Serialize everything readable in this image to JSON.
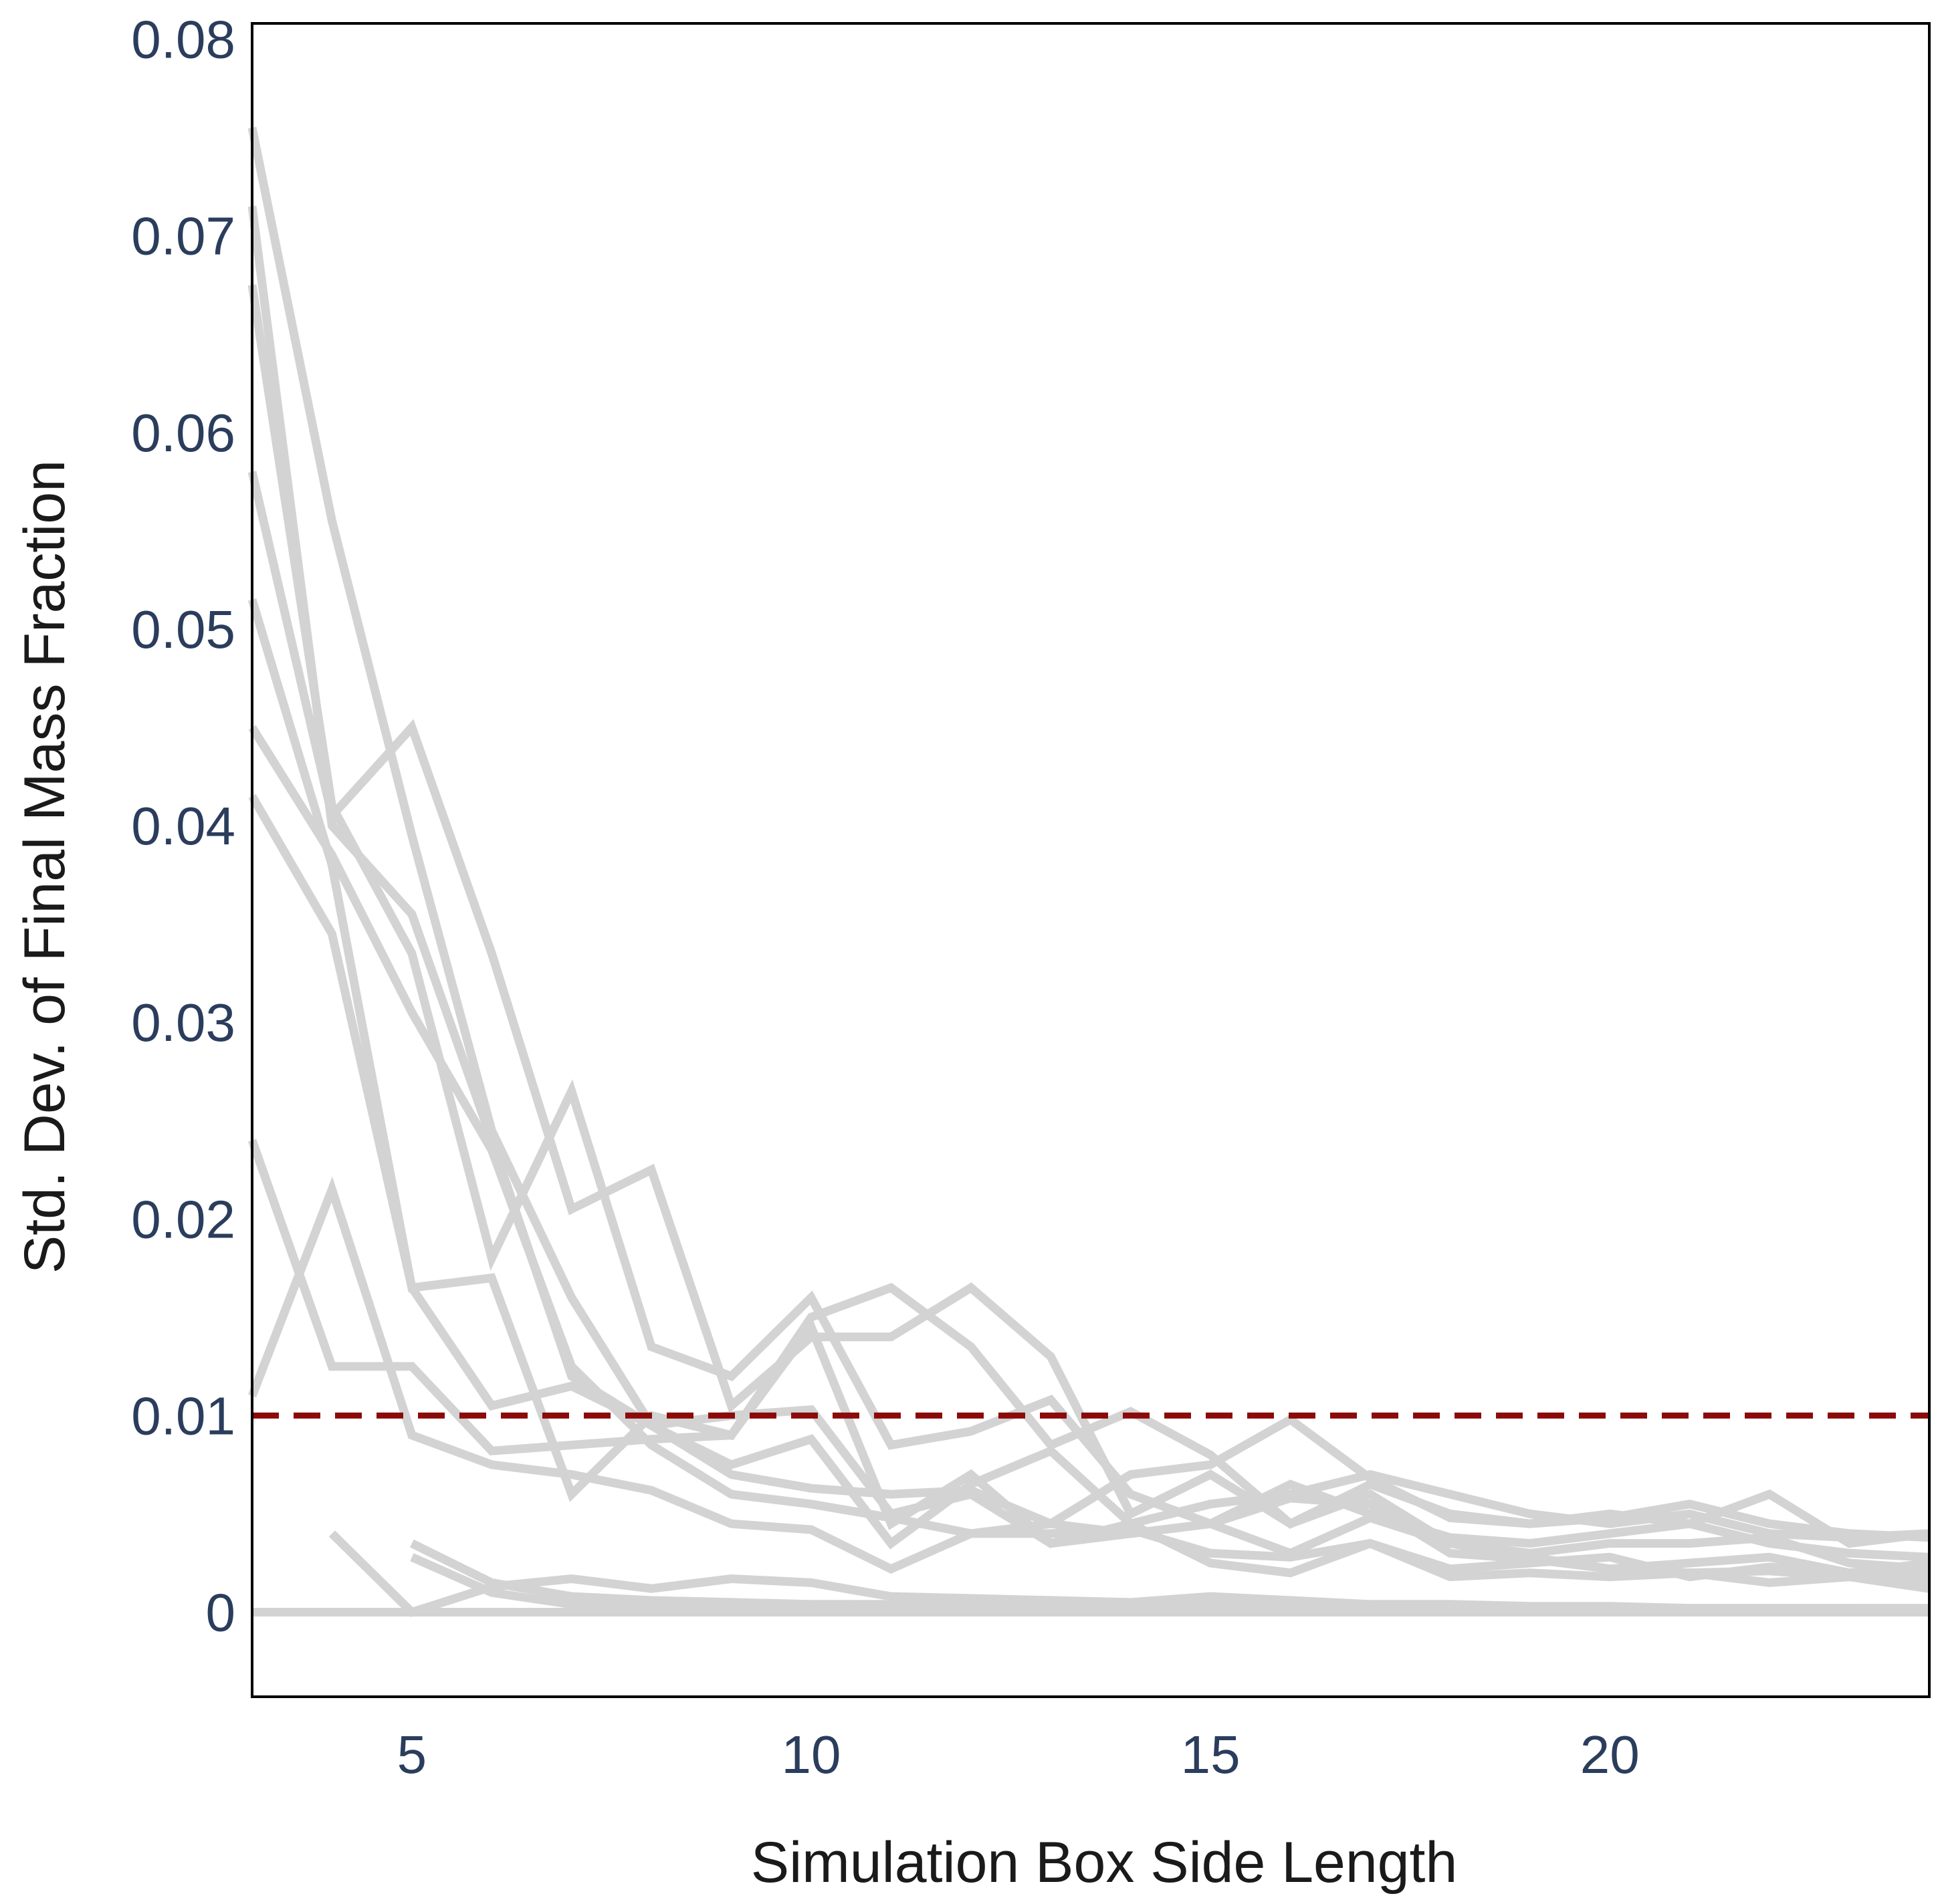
{
  "chart_data": {
    "type": "line",
    "title": "",
    "xlabel": "Simulation Box Side Length",
    "ylabel": "Std. Dev. of Final Mass Fraction",
    "xlim": [
      3,
      24
    ],
    "ylim": [
      -0.0043,
      0.0808
    ],
    "x_ticks": [
      5,
      10,
      15,
      20
    ],
    "x_tick_labels": [
      "5",
      "10",
      "15",
      "20"
    ],
    "y_ticks": [
      0,
      0.01,
      0.02,
      0.03,
      0.04,
      0.05,
      0.06,
      0.07,
      0.08
    ],
    "y_tick_labels": [
      "0",
      "0.01",
      "0.02",
      "0.03",
      "0.04",
      "0.05",
      "0.06",
      "0.07",
      "0.08"
    ],
    "grid": false,
    "legend": "none",
    "reference_line": {
      "y": 0.01,
      "style": "dashed",
      "color": "#8b0a0a"
    },
    "series_color": "#d3d3d3",
    "tick_color": "#2b3d5c",
    "series": [
      {
        "x": [
          3,
          4,
          5,
          6,
          7,
          8,
          9,
          10,
          11,
          12,
          13,
          14,
          15,
          16,
          17,
          18,
          19,
          20,
          21,
          22,
          23,
          24
        ],
        "y": [
          0.0755,
          0.0555,
          0.0395,
          0.0245,
          0.016,
          0.0095,
          0.007,
          0.0063,
          0.006,
          0.0062,
          0.0045,
          0.004,
          0.0045,
          0.0058,
          0.0055,
          0.003,
          0.0027,
          0.0022,
          0.002,
          0.0021,
          0.0018,
          0.0015
        ]
      },
      {
        "x": [
          3,
          4,
          5,
          6,
          7,
          8,
          9,
          10,
          11,
          12,
          13,
          14,
          15,
          16,
          17,
          18,
          19,
          20,
          21,
          22,
          23,
          24
        ],
        "y": [
          0.0715,
          0.04,
          0.0355,
          0.024,
          0.012,
          0.0095,
          0.01,
          0.0103,
          0.005,
          0.006,
          0.0035,
          0.004,
          0.0045,
          0.0065,
          0.005,
          0.0038,
          0.0035,
          0.004,
          0.0045,
          0.0035,
          0.003,
          0.0028
        ]
      },
      {
        "x": [
          3,
          4,
          5,
          6,
          7,
          8,
          9,
          10,
          11,
          12,
          13,
          14,
          15,
          16,
          17,
          18,
          19,
          20,
          21,
          22,
          23,
          24
        ],
        "y": [
          0.0675,
          0.041,
          0.0335,
          0.018,
          0.0265,
          0.0135,
          0.012,
          0.016,
          0.0085,
          0.0092,
          0.0108,
          0.006,
          0.0045,
          0.003,
          0.0048,
          0.0035,
          0.0028,
          0.0022,
          0.0025,
          0.0028,
          0.002,
          0.0018
        ]
      },
      {
        "x": [
          3,
          4,
          5,
          6,
          7,
          8,
          9,
          10,
          11,
          12,
          13,
          14,
          15,
          16,
          17,
          18,
          19,
          20,
          21,
          22,
          23,
          24
        ],
        "y": [
          0.058,
          0.0405,
          0.045,
          0.0335,
          0.0205,
          0.0225,
          0.0105,
          0.014,
          0.014,
          0.0165,
          0.013,
          0.005,
          0.007,
          0.0045,
          0.0065,
          0.005,
          0.0045,
          0.0048,
          0.0055,
          0.0045,
          0.004,
          0.0038
        ]
      },
      {
        "x": [
          3,
          4,
          5,
          6,
          7,
          8,
          9,
          10,
          11,
          12,
          13,
          14,
          15,
          16,
          17,
          18,
          19,
          20,
          21,
          22,
          23,
          24
        ],
        "y": [
          0.0515,
          0.038,
          0.0165,
          0.0105,
          0.0115,
          0.0095,
          0.0075,
          0.0088,
          0.0035,
          0.0065,
          0.0082,
          0.0045,
          0.0025,
          0.002,
          0.0035,
          0.0022,
          0.0025,
          0.0028,
          0.0018,
          0.0023,
          0.002,
          0.0025
        ]
      },
      {
        "x": [
          3,
          4,
          5,
          6,
          7,
          8,
          9,
          10,
          11,
          12,
          13,
          14,
          15,
          16,
          17,
          18,
          19,
          20,
          21,
          22,
          23,
          24
        ],
        "y": [
          0.045,
          0.0385,
          0.0305,
          0.0235,
          0.0125,
          0.0085,
          0.006,
          0.0055,
          0.0048,
          0.004,
          0.0045,
          0.007,
          0.0075,
          0.0098,
          0.0068,
          0.0048,
          0.0045,
          0.005,
          0.0045,
          0.006,
          0.0035,
          0.004
        ]
      },
      {
        "x": [
          3,
          4,
          5,
          6,
          7,
          8,
          9,
          10,
          11,
          12,
          13,
          14,
          15,
          16,
          17,
          18,
          19,
          20,
          21,
          22,
          23,
          24
        ],
        "y": [
          0.0415,
          0.0345,
          0.0165,
          0.017,
          0.006,
          0.01,
          0.009,
          0.015,
          0.0165,
          0.0135,
          0.0085,
          0.0102,
          0.008,
          0.0045,
          0.006,
          0.0035,
          0.003,
          0.0035,
          0.0035,
          0.0038,
          0.0025,
          0.0022
        ]
      },
      {
        "x": [
          3,
          4,
          5,
          6,
          7,
          8,
          9,
          10,
          11,
          12,
          13,
          14,
          15,
          16,
          17,
          18,
          19,
          20,
          21,
          22,
          23,
          24
        ],
        "y": [
          0.024,
          0.0125,
          0.0125,
          0.0082,
          0.0085,
          0.0088,
          0.009,
          0.0145,
          0.0045,
          0.007,
          0.0035,
          0.0045,
          0.0055,
          0.006,
          0.007,
          0.006,
          0.005,
          0.0045,
          0.005,
          0.004,
          0.0038,
          0.004
        ]
      },
      {
        "x": [
          3,
          4,
          5,
          6,
          7,
          8,
          9,
          10,
          11,
          12,
          13,
          14,
          15,
          16,
          17,
          18,
          19,
          20,
          21,
          22,
          23,
          24
        ],
        "y": [
          0.011,
          0.0215,
          0.009,
          0.0075,
          0.007,
          0.0062,
          0.0045,
          0.0042,
          0.0022,
          0.004,
          0.004,
          0.0042,
          0.003,
          0.0028,
          0.0035,
          0.0018,
          0.002,
          0.0018,
          0.002,
          0.0015,
          0.0018,
          0.0012
        ]
      },
      {
        "x": [
          4,
          5,
          6,
          7,
          8,
          9,
          10,
          11,
          12,
          13,
          14,
          15,
          16,
          17,
          18,
          19,
          20,
          21,
          22,
          23,
          24
        ],
        "y": [
          0.004,
          0.0,
          0.0013,
          0.0017,
          0.0012,
          0.0017,
          0.0015,
          0.0008,
          0.0007,
          0.0006,
          0.0005,
          0.0008,
          0.0006,
          0.0004,
          0.0004,
          0.0003,
          0.0003,
          0.0002,
          0.0002,
          0.0002,
          0.0002
        ]
      },
      {
        "x": [
          5,
          6,
          7,
          8,
          9,
          10,
          11,
          12,
          13,
          14,
          15,
          16,
          17,
          18,
          19,
          20,
          21,
          22,
          23,
          24
        ],
        "y": [
          0.0035,
          0.0015,
          0.0008,
          0.0006,
          0.0005,
          0.0004,
          0.0004,
          0.0005,
          0.0006,
          0.0004,
          0.0005,
          0.0003,
          0.0003,
          0.0003,
          0.0002,
          0.0002,
          0.0002,
          0.0002,
          0.0002,
          0.0001
        ]
      },
      {
        "x": [
          5,
          6,
          7,
          8,
          9,
          10,
          11,
          12,
          13,
          14,
          15,
          16,
          17,
          18,
          19,
          20,
          21,
          22,
          23,
          24
        ],
        "y": [
          0.0028,
          0.001,
          0.0004,
          0.0003,
          0.0003,
          0.0003,
          0.0002,
          0.0002,
          0.0003,
          0.0002,
          0.0002,
          0.0002,
          0.0002,
          0.0001,
          0.0001,
          0.0001,
          0.0001,
          0.0001,
          0.0001,
          0.0001
        ]
      },
      {
        "x": [
          3,
          4,
          5,
          6,
          7,
          8,
          9,
          10,
          11,
          12,
          13,
          14,
          15,
          16,
          17,
          18,
          19,
          20,
          21,
          22,
          23,
          24
        ],
        "y": [
          0,
          0,
          0,
          0,
          0,
          0,
          0,
          0,
          0,
          0,
          0,
          0,
          0,
          0,
          0,
          0,
          0,
          0,
          0,
          0,
          0,
          0
        ]
      }
    ]
  }
}
